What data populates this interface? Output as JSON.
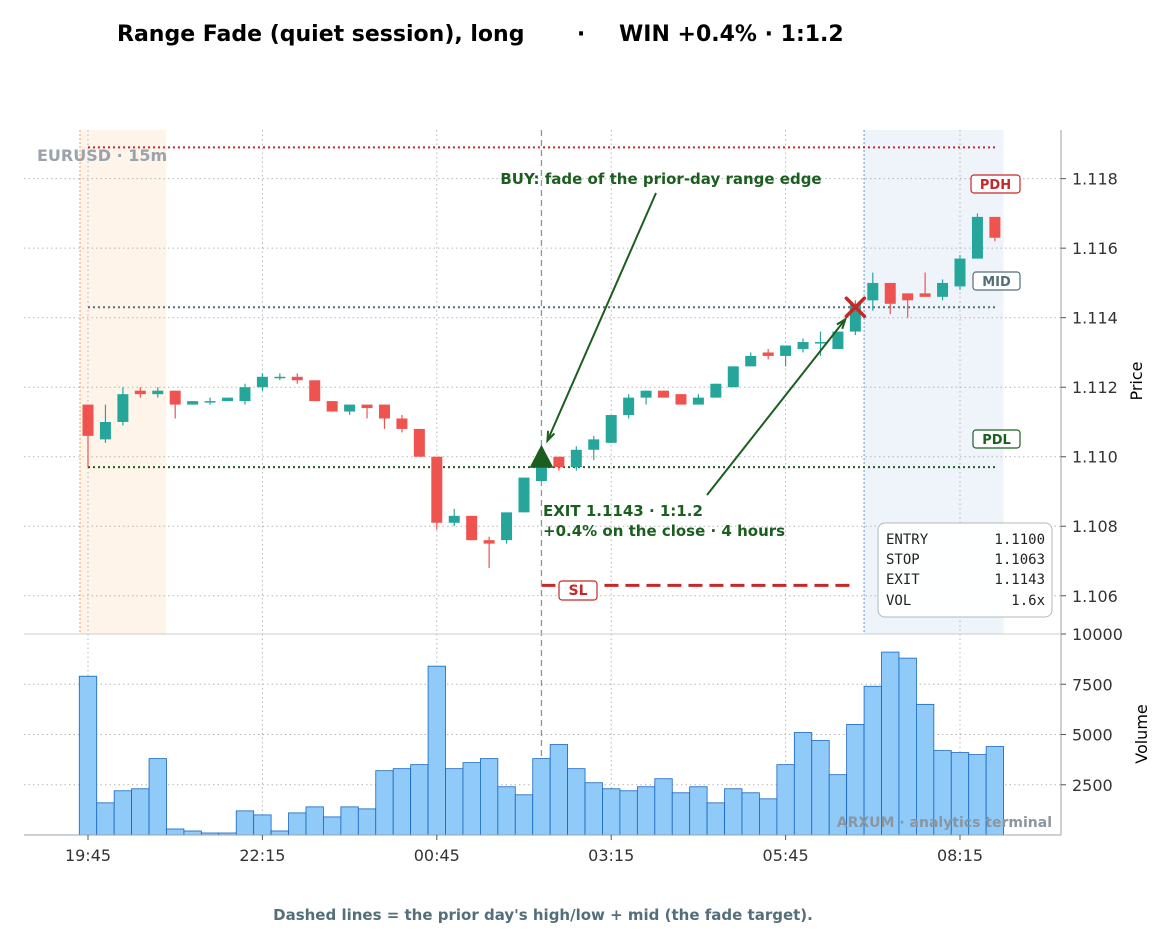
{
  "title": {
    "setup": "Range Fade (quiet session), long",
    "separator": "·",
    "result": "WIN +0.4% · 1:1.2"
  },
  "footer": "Dashed lines = the prior day's high/low + mid (the fade target).",
  "watermark": "ARXUM · analytics terminal",
  "symbol_label": "EURUSD · 15m",
  "annotations": {
    "buy": "BUY: fade of the prior-day range edge",
    "exit_line1": "EXIT 1.1143 · 1:1.2",
    "exit_line2": "+0.4% on the close  ·  4 hours",
    "pdh": "PDH",
    "mid": "MID",
    "pdl": "PDL",
    "sl": "SL"
  },
  "trade_box": [
    {
      "label": "ENTRY",
      "value": "1.1100"
    },
    {
      "label": "STOP",
      "value": "1.1063"
    },
    {
      "label": "EXIT",
      "value": "1.1143"
    },
    {
      "label": "VOL",
      "value": "1.6x"
    }
  ],
  "colors": {
    "up": "#26a69a",
    "down": "#ef5350",
    "volume": "#90caf9",
    "volume_edge": "#1565c0",
    "pdh_line": "#c62828",
    "mid_line": "#546e7a",
    "pdl_line": "#1b5e20",
    "stop_line": "#c62828",
    "entry_marker": "#1b5e20",
    "exit_marker": "#c62828",
    "pre_session_band": "#fdebd9",
    "post_session_band": "#dce6f4"
  },
  "chart_data": {
    "type": "candlestick",
    "interval_minutes": 15,
    "x_start": "19:45",
    "x_ticks": [
      "19:45",
      "22:15",
      "00:45",
      "03:15",
      "05:45",
      "08:15"
    ],
    "price_ticks": [
      1.106,
      1.108,
      1.11,
      1.112,
      1.114,
      1.116,
      1.118
    ],
    "price_ylim": [
      1.1049,
      1.1194
    ],
    "volume_ticks": [
      2500,
      5000,
      7500,
      10000
    ],
    "volume_ylim": [
      0,
      10000
    ],
    "ylabel_price": "Price",
    "ylabel_volume": "Volume",
    "grid": true,
    "levels": {
      "pdh": 1.1189,
      "mid": 1.1143,
      "pdl": 1.1097,
      "stop": 1.1063
    },
    "entry": {
      "bar": 26,
      "price": 1.11
    },
    "exit": {
      "bar": 44,
      "price": 1.1143
    },
    "pre_session_bars": [
      0,
      4.5
    ],
    "post_session_bars": [
      44.5,
      52.5
    ],
    "bars": [
      {
        "o": 1.1115,
        "h": 1.1115,
        "l": 1.1097,
        "c": 1.1106,
        "v": 7900
      },
      {
        "o": 1.1105,
        "h": 1.1115,
        "l": 1.1104,
        "c": 1.111,
        "v": 1600
      },
      {
        "o": 1.111,
        "h": 1.112,
        "l": 1.1109,
        "c": 1.1118,
        "v": 2200
      },
      {
        "o": 1.1119,
        "h": 1.112,
        "l": 1.1117,
        "c": 1.1118,
        "v": 2300
      },
      {
        "o": 1.1118,
        "h": 1.112,
        "l": 1.1117,
        "c": 1.1119,
        "v": 3800
      },
      {
        "o": 1.1119,
        "h": 1.1119,
        "l": 1.1111,
        "c": 1.1115,
        "v": 300
      },
      {
        "o": 1.1115,
        "h": 1.1116,
        "l": 1.1115,
        "c": 1.1116,
        "v": 200
      },
      {
        "o": 1.1116,
        "h": 1.1117,
        "l": 1.1115,
        "c": 1.1116,
        "v": 100
      },
      {
        "o": 1.1116,
        "h": 1.1117,
        "l": 1.1116,
        "c": 1.1117,
        "v": 100
      },
      {
        "o": 1.1116,
        "h": 1.1121,
        "l": 1.1115,
        "c": 1.112,
        "v": 1200
      },
      {
        "o": 1.112,
        "h": 1.1124,
        "l": 1.1119,
        "c": 1.1123,
        "v": 1000
      },
      {
        "o": 1.1123,
        "h": 1.1124,
        "l": 1.1122,
        "c": 1.1123,
        "v": 200
      },
      {
        "o": 1.1123,
        "h": 1.1124,
        "l": 1.1121,
        "c": 1.1122,
        "v": 1100
      },
      {
        "o": 1.1122,
        "h": 1.1122,
        "l": 1.1116,
        "c": 1.1116,
        "v": 1400
      },
      {
        "o": 1.1116,
        "h": 1.1116,
        "l": 1.1113,
        "c": 1.1113,
        "v": 900
      },
      {
        "o": 1.1113,
        "h": 1.1115,
        "l": 1.1112,
        "c": 1.1115,
        "v": 1400
      },
      {
        "o": 1.1115,
        "h": 1.1115,
        "l": 1.1111,
        "c": 1.1114,
        "v": 1300
      },
      {
        "o": 1.1115,
        "h": 1.1115,
        "l": 1.1108,
        "c": 1.1111,
        "v": 3200
      },
      {
        "o": 1.1111,
        "h": 1.1112,
        "l": 1.1107,
        "c": 1.1108,
        "v": 3300
      },
      {
        "o": 1.1108,
        "h": 1.1108,
        "l": 1.11,
        "c": 1.11,
        "v": 3500
      },
      {
        "o": 1.11,
        "h": 1.11,
        "l": 1.1079,
        "c": 1.1081,
        "v": 8400
      },
      {
        "o": 1.1081,
        "h": 1.1085,
        "l": 1.108,
        "c": 1.1083,
        "v": 3300
      },
      {
        "o": 1.1083,
        "h": 1.1083,
        "l": 1.1076,
        "c": 1.1076,
        "v": 3600
      },
      {
        "o": 1.1076,
        "h": 1.1077,
        "l": 1.1068,
        "c": 1.1075,
        "v": 3800
      },
      {
        "o": 1.1076,
        "h": 1.1084,
        "l": 1.1075,
        "c": 1.1084,
        "v": 2400
      },
      {
        "o": 1.1084,
        "h": 1.1094,
        "l": 1.1084,
        "c": 1.1094,
        "v": 2000
      },
      {
        "o": 1.1093,
        "h": 1.1102,
        "l": 1.1093,
        "c": 1.11,
        "v": 3800
      },
      {
        "o": 1.11,
        "h": 1.11,
        "l": 1.1096,
        "c": 1.1097,
        "v": 4500
      },
      {
        "o": 1.1097,
        "h": 1.1103,
        "l": 1.1096,
        "c": 1.1102,
        "v": 3300
      },
      {
        "o": 1.1102,
        "h": 1.1106,
        "l": 1.1099,
        "c": 1.1105,
        "v": 2600
      },
      {
        "o": 1.1104,
        "h": 1.1112,
        "l": 1.1104,
        "c": 1.1112,
        "v": 2300
      },
      {
        "o": 1.1112,
        "h": 1.1118,
        "l": 1.1111,
        "c": 1.1117,
        "v": 2200
      },
      {
        "o": 1.1117,
        "h": 1.1119,
        "l": 1.1115,
        "c": 1.1119,
        "v": 2400
      },
      {
        "o": 1.1119,
        "h": 1.1119,
        "l": 1.1117,
        "c": 1.1117,
        "v": 2800
      },
      {
        "o": 1.1118,
        "h": 1.1118,
        "l": 1.1115,
        "c": 1.1115,
        "v": 2100
      },
      {
        "o": 1.1115,
        "h": 1.1118,
        "l": 1.1115,
        "c": 1.1117,
        "v": 2400
      },
      {
        "o": 1.1117,
        "h": 1.1121,
        "l": 1.1117,
        "c": 1.1121,
        "v": 1600
      },
      {
        "o": 1.112,
        "h": 1.1126,
        "l": 1.112,
        "c": 1.1126,
        "v": 2300
      },
      {
        "o": 1.1126,
        "h": 1.113,
        "l": 1.1126,
        "c": 1.1129,
        "v": 2100
      },
      {
        "o": 1.113,
        "h": 1.1131,
        "l": 1.1128,
        "c": 1.1129,
        "v": 1800
      },
      {
        "o": 1.1129,
        "h": 1.1132,
        "l": 1.1126,
        "c": 1.1132,
        "v": 3500
      },
      {
        "o": 1.1131,
        "h": 1.1134,
        "l": 1.113,
        "c": 1.1133,
        "v": 5100
      },
      {
        "o": 1.1133,
        "h": 1.1136,
        "l": 1.1129,
        "c": 1.1133,
        "v": 4700
      },
      {
        "o": 1.1131,
        "h": 1.1136,
        "l": 1.1131,
        "c": 1.1136,
        "v": 3000
      },
      {
        "o": 1.1136,
        "h": 1.1145,
        "l": 1.1135,
        "c": 1.1144,
        "v": 5500
      },
      {
        "o": 1.1145,
        "h": 1.1153,
        "l": 1.1142,
        "c": 1.115,
        "v": 7400
      },
      {
        "o": 1.115,
        "h": 1.115,
        "l": 1.1141,
        "c": 1.1144,
        "v": 9100
      },
      {
        "o": 1.1147,
        "h": 1.1147,
        "l": 1.114,
        "c": 1.1145,
        "v": 8800
      },
      {
        "o": 1.1147,
        "h": 1.1153,
        "l": 1.1146,
        "c": 1.1146,
        "v": 6500
      },
      {
        "o": 1.1146,
        "h": 1.1151,
        "l": 1.1145,
        "c": 1.115,
        "v": 4200
      },
      {
        "o": 1.1149,
        "h": 1.1158,
        "l": 1.1148,
        "c": 1.1157,
        "v": 4100
      },
      {
        "o": 1.1157,
        "h": 1.117,
        "l": 1.1157,
        "c": 1.1169,
        "v": 4000
      },
      {
        "o": 1.1169,
        "h": 1.1169,
        "l": 1.1162,
        "c": 1.1163,
        "v": 4400
      }
    ]
  }
}
